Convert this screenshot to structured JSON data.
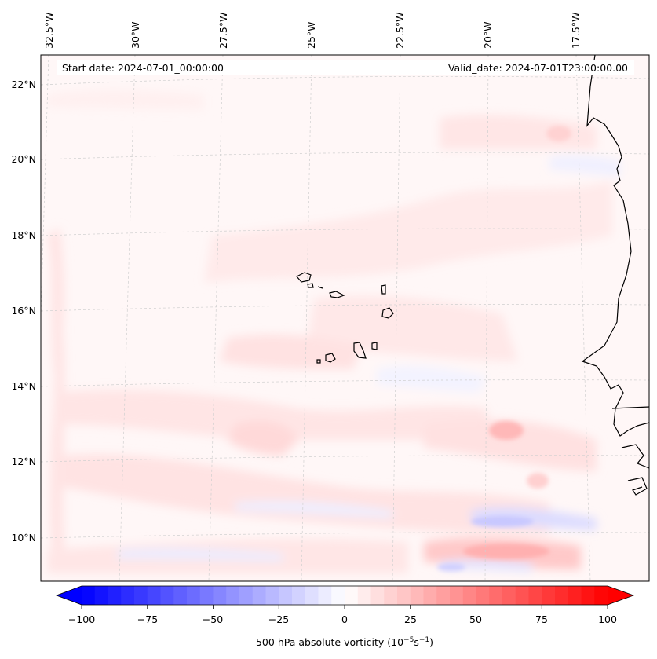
{
  "header": {
    "start_date": "Start date: 2024-07-01_00:00:00",
    "valid_date": "Valid_date: 2024-07-01T23:00:00.00"
  },
  "axes": {
    "lon_labels": [
      "32.5°W",
      "30°W",
      "27.5°W",
      "25°W",
      "22.5°W",
      "20°W",
      "17.5°W"
    ],
    "lat_labels": [
      "22°N",
      "20°N",
      "18°N",
      "16°N",
      "14°N",
      "12°N",
      "10°N"
    ]
  },
  "colorbar": {
    "ticks": [
      "−100",
      "−75",
      "−50",
      "−25",
      "0",
      "25",
      "50",
      "75",
      "100"
    ],
    "label_main": "500 hPa absolute vorticity (10",
    "label_exp1": "−5",
    "label_mid": "s",
    "label_exp2": "−1",
    "label_end": ")",
    "range": [
      -100,
      100
    ],
    "neg_color": "#0000ff",
    "pos_color": "#ff0000"
  },
  "colors": {
    "land_outline": "#000000",
    "grid": "#cccccc"
  }
}
